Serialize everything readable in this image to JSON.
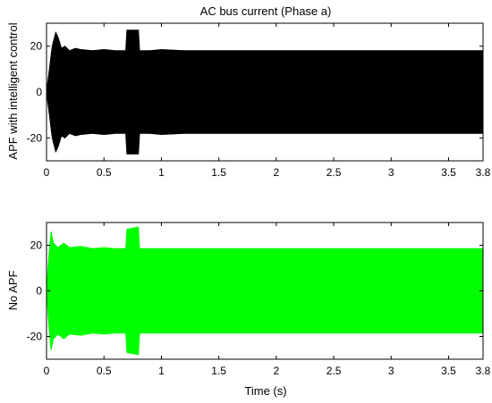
{
  "chart_data": [
    {
      "type": "area",
      "title": "AC bus current (Phase a)",
      "xlabel": "",
      "ylabel": "APF with intelligent control",
      "xlim": [
        0,
        3.8
      ],
      "ylim": [
        -30,
        30
      ],
      "xticks": [
        0,
        0.5,
        1,
        1.5,
        2,
        2.5,
        3,
        3.5,
        3.8
      ],
      "yticks": [
        -20,
        0,
        20
      ],
      "grid": false,
      "color": "#000000",
      "series": [
        {
          "x": [
            0,
            0.02,
            0.05,
            0.08,
            0.1,
            0.13,
            0.16,
            0.2,
            0.25,
            0.3,
            0.4,
            0.5,
            0.6,
            0.69,
            0.7,
            0.8,
            0.81,
            0.9,
            1.0,
            1.2,
            1.5,
            1.8,
            2.0,
            2.5,
            3.0,
            3.5,
            3.8
          ],
          "upper": [
            0,
            8,
            20,
            26,
            24,
            19,
            20,
            18,
            19,
            18.5,
            18,
            18.5,
            18,
            18,
            27,
            27,
            18,
            18,
            18.5,
            18,
            18,
            18,
            18,
            18,
            18,
            18,
            18
          ],
          "lower": [
            0,
            -8,
            -20,
            -26,
            -24,
            -19,
            -20,
            -18,
            -19,
            -18.5,
            -18,
            -18.5,
            -18,
            -18,
            -27,
            -27,
            -18,
            -18,
            -18.5,
            -18,
            -18,
            -18,
            -18,
            -18,
            -18,
            -18,
            -18
          ]
        }
      ]
    },
    {
      "type": "area",
      "title": "",
      "xlabel": "Time (s)",
      "ylabel": "No APF",
      "xlim": [
        0,
        3.8
      ],
      "ylim": [
        -30,
        30
      ],
      "xticks": [
        0,
        0.5,
        1,
        1.5,
        2,
        2.5,
        3,
        3.5,
        3.8
      ],
      "yticks": [
        -20,
        0,
        20
      ],
      "grid": false,
      "color": "#00ff00",
      "series": [
        {
          "x": [
            0,
            0.02,
            0.04,
            0.06,
            0.1,
            0.15,
            0.2,
            0.3,
            0.4,
            0.5,
            0.6,
            0.69,
            0.7,
            0.8,
            0.81,
            1.0,
            1.5,
            2.0,
            2.5,
            3.0,
            3.5,
            3.8
          ],
          "upper": [
            0,
            15,
            26,
            21,
            19,
            21,
            19,
            19.5,
            18.5,
            19,
            18.5,
            18.5,
            27,
            28,
            18.5,
            18.5,
            18.5,
            18.5,
            18.5,
            18.5,
            18.5,
            18.5
          ],
          "lower": [
            0,
            -15,
            -26,
            -21,
            -19,
            -21,
            -19,
            -19.5,
            -18.5,
            -19,
            -18.5,
            -18.5,
            -27,
            -28,
            -18.5,
            -18.5,
            -18.5,
            -18.5,
            -18.5,
            -18.5,
            -18.5,
            -18.5
          ]
        }
      ]
    }
  ]
}
